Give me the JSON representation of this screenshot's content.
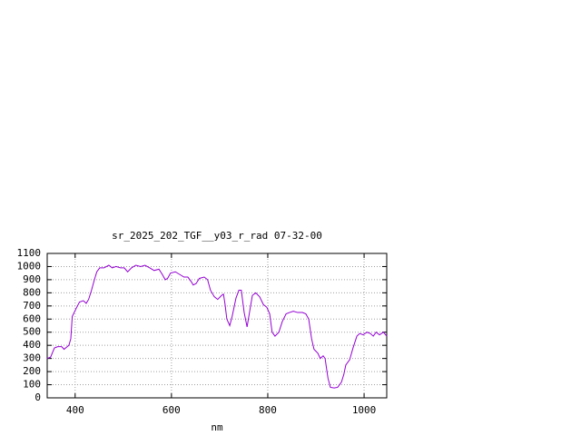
{
  "chart_data": {
    "type": "line",
    "title": "sr_2025_202_TGF__y03_r_rad 07-32-00",
    "x_label": "nm",
    "xlim": [
      342,
      1047
    ],
    "xticks": [
      400,
      600,
      800,
      1000
    ],
    "ylim": [
      0,
      1100
    ],
    "yticks": [
      0,
      100,
      200,
      300,
      400,
      500,
      600,
      700,
      800,
      900,
      1000,
      1100
    ],
    "grid": true,
    "series": [
      {
        "color": "#9400d3",
        "x": [
          342,
          349,
          357,
          364,
          372,
          377,
          387,
          391,
          394,
          402,
          409,
          417,
          423,
          428,
          434,
          440,
          445,
          451,
          460,
          470,
          477,
          485,
          494,
          502,
          509,
          517,
          526,
          536,
          545,
          555,
          564,
          574,
          581,
          587,
          592,
          598,
          608,
          617,
          626,
          634,
          642,
          645,
          651,
          658,
          668,
          675,
          681,
          689,
          696,
          704,
          708,
          711,
          715,
          721,
          726,
          734,
          740,
          745,
          751,
          757,
          762,
          768,
          775,
          783,
          791,
          798,
          804,
          809,
          815,
          823,
          830,
          838,
          845,
          853,
          862,
          872,
          879,
          885,
          891,
          896,
          904,
          909,
          915,
          919,
          925,
          930,
          938,
          945,
          953,
          958,
          962,
          970,
          977,
          985,
          991,
          998,
          1006,
          1013,
          1019,
          1025,
          1032,
          1040,
          1047
        ],
        "values": [
          300,
          310,
          380,
          390,
          390,
          370,
          400,
          450,
          620,
          680,
          730,
          740,
          720,
          750,
          820,
          900,
          960,
          990,
          990,
          1010,
          990,
          1000,
          990,
          990,
          960,
          990,
          1010,
          1000,
          1010,
          990,
          970,
          980,
          940,
          900,
          910,
          950,
          960,
          940,
          920,
          920,
          880,
          860,
          870,
          910,
          920,
          900,
          820,
          770,
          750,
          780,
          790,
          720,
          600,
          550,
          620,
          760,
          820,
          820,
          650,
          540,
          650,
          780,
          800,
          770,
          710,
          690,
          640,
          500,
          470,
          500,
          580,
          640,
          650,
          660,
          650,
          650,
          640,
          600,
          450,
          370,
          340,
          300,
          320,
          300,
          150,
          80,
          75,
          80,
          120,
          180,
          250,
          290,
          380,
          470,
          490,
          480,
          500,
          490,
          470,
          500,
          480,
          500,
          470
        ]
      }
    ]
  }
}
